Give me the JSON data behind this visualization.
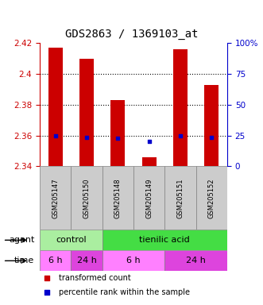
{
  "title": "GDS2863 / 1369103_at",
  "samples": [
    "GSM205147",
    "GSM205150",
    "GSM205148",
    "GSM205149",
    "GSM205151",
    "GSM205152"
  ],
  "bar_values": [
    2.417,
    2.41,
    2.383,
    2.346,
    2.416,
    2.393
  ],
  "bar_bottom": 2.34,
  "percentile_values": [
    2.36,
    2.359,
    2.358,
    2.356,
    2.36,
    2.359
  ],
  "bar_color": "#cc0000",
  "percentile_color": "#0000cc",
  "ylim": [
    2.34,
    2.42
  ],
  "yticks": [
    2.34,
    2.36,
    2.38,
    2.4,
    2.42
  ],
  "right_yticks": [
    0,
    25,
    50,
    75,
    100
  ],
  "right_ylim": [
    0,
    100
  ],
  "legend_red_label": "transformed count",
  "legend_blue_label": "percentile rank within the sample",
  "left_label_color": "#cc0000",
  "right_label_color": "#0000cc",
  "bar_width": 0.45,
  "control_color": "#aaeea0",
  "tienilic_color": "#44dd44",
  "time_6h_color": "#ff80ff",
  "time_24h_color": "#dd44dd",
  "sample_box_color": "#cccccc"
}
